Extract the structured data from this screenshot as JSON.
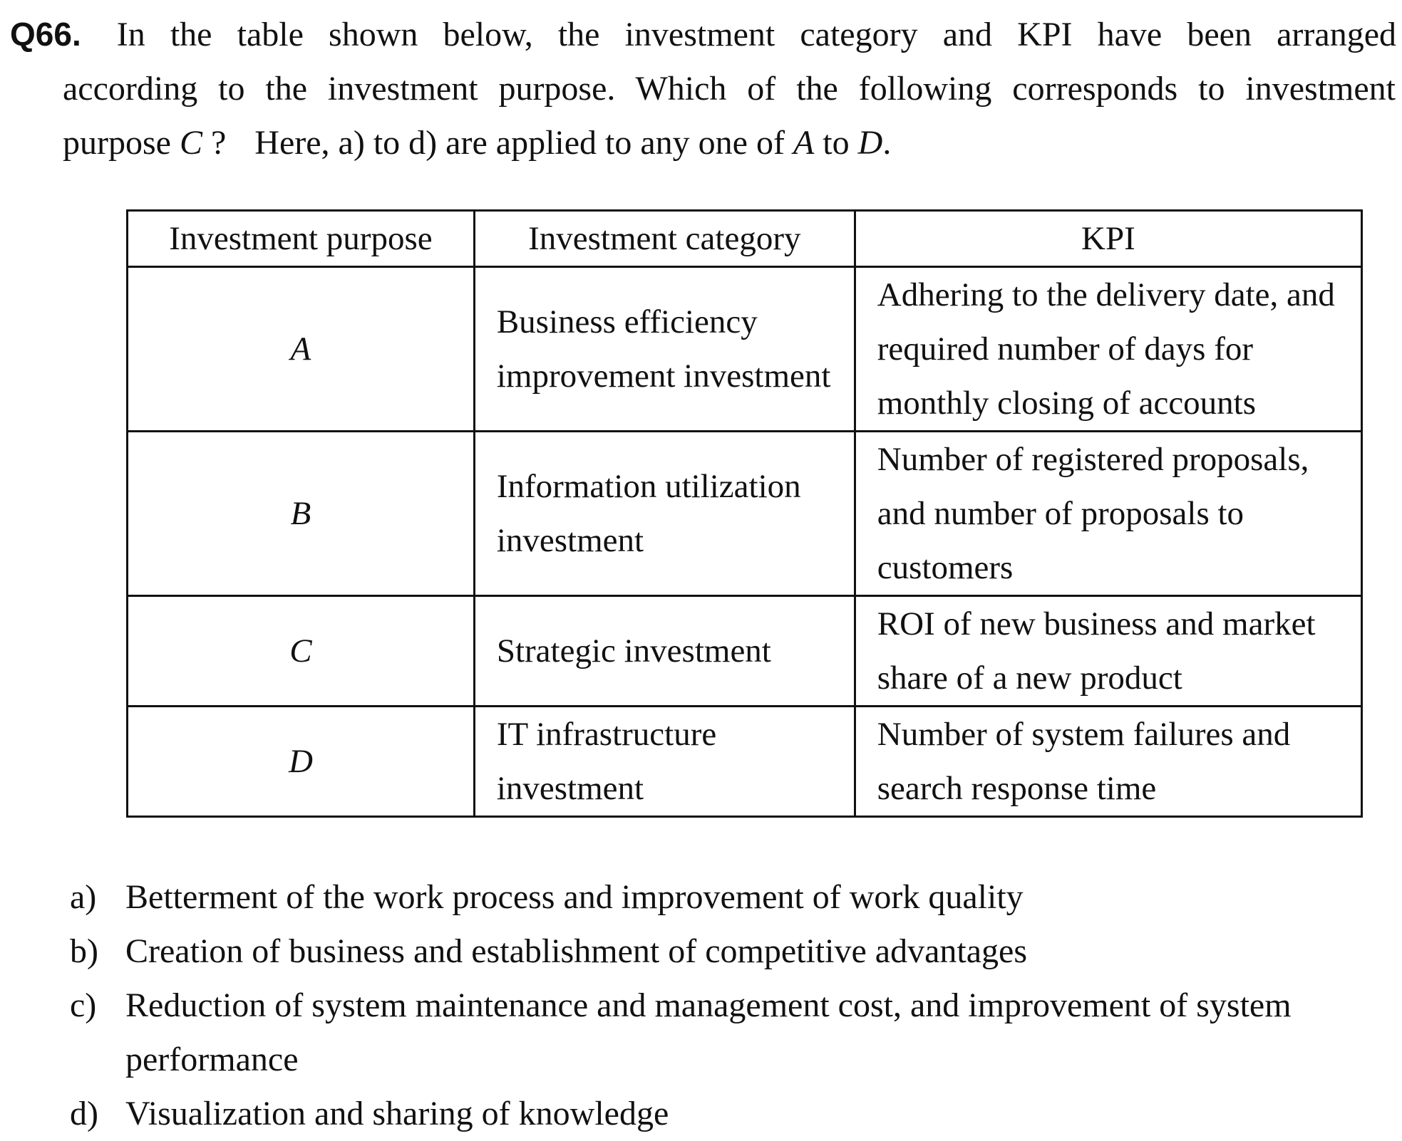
{
  "question": {
    "number": "Q66.",
    "line1": "In the table shown below, the investment category and KPI have been arranged",
    "line2": "according to the investment purpose. Which of the following corresponds to investment",
    "line3_pre": "purpose ",
    "line3_var": "C",
    "line3_mid": " ?",
    "line3_text": "Here, a) to d) are applied to any one of ",
    "line3_a": "A",
    "line3_to": " to ",
    "line3_d": "D",
    "line3_end": "."
  },
  "table": {
    "headers": [
      "Investment purpose",
      "Investment category",
      "KPI"
    ],
    "rows": [
      {
        "purpose": "A",
        "category": "Business efficiency improvement investment",
        "kpi": "Adhering to the delivery date, and required number of days for monthly closing of accounts"
      },
      {
        "purpose": "B",
        "category": "Information utilization investment",
        "kpi": "Number of registered proposals, and number of proposals to customers"
      },
      {
        "purpose": "C",
        "category": "Strategic investment",
        "kpi": "ROI of new business and market share of a new product"
      },
      {
        "purpose": "D",
        "category": "IT infrastructure investment",
        "kpi": "Number of system failures and search response time"
      }
    ]
  },
  "options": [
    {
      "label": "a)",
      "text": "Betterment of the work process and improvement of work quality"
    },
    {
      "label": "b)",
      "text": "Creation of business and establishment of competitive advantages"
    },
    {
      "label": "c)",
      "text": "Reduction of system maintenance and management cost, and improvement of system performance"
    },
    {
      "label": "d)",
      "text": "Visualization and sharing of knowledge"
    }
  ]
}
